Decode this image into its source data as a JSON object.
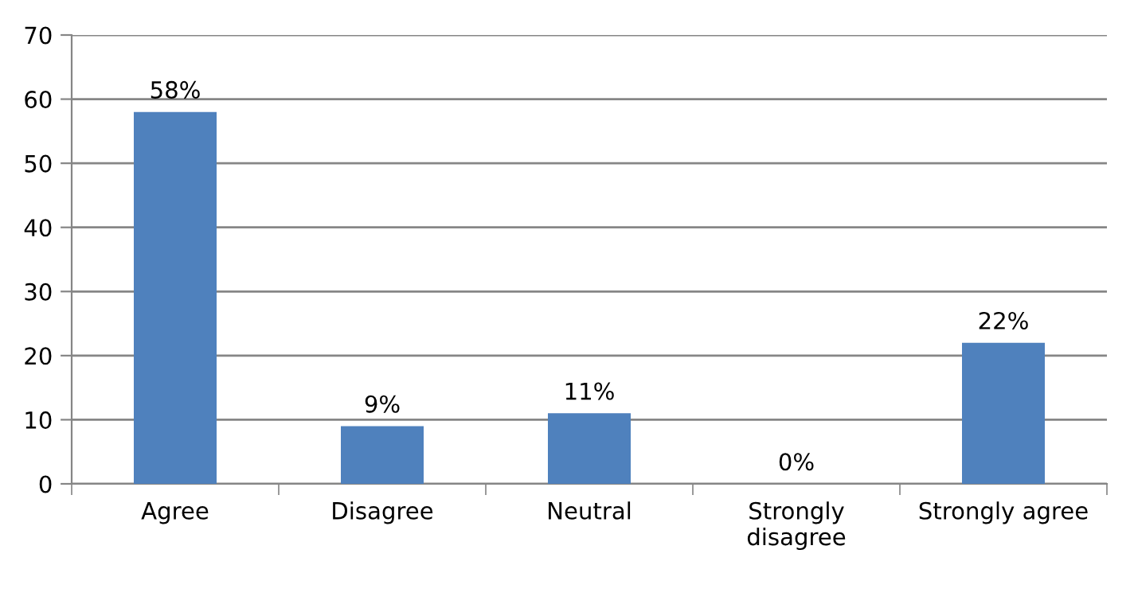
{
  "chart_data": {
    "type": "bar",
    "categories": [
      "Agree",
      "Disagree",
      "Neutral",
      "Strongly\ndisagree",
      "Strongly agree"
    ],
    "values": [
      58,
      9,
      11,
      0,
      22
    ],
    "value_labels": [
      "58%",
      "9%",
      "11%",
      "0%",
      "22%"
    ],
    "color": "#4f81bd",
    "ylim": [
      0,
      70
    ],
    "yticks": [
      0,
      10,
      20,
      30,
      40,
      50,
      60,
      70
    ],
    "grid": "y",
    "legend": false
  }
}
